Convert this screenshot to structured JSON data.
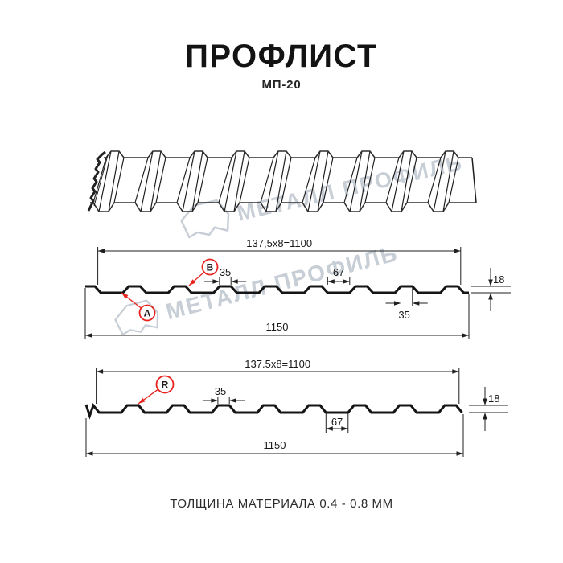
{
  "page": {
    "title": "ПРОФЛИСТ",
    "subtitle": "МП-20",
    "footer": "ТОЛЩИНА МАТЕРИАЛА 0.4 - 0.8 ММ"
  },
  "watermark": {
    "text": "МЕТАЛЛ ПРОФИЛЬ"
  },
  "colors": {
    "accent_red": "#e8231e",
    "line_dark": "#1f1f1f",
    "sheet_line": "#2e2e2e",
    "watermark": "#c7ced6"
  },
  "profile_top": {
    "pitch_dim": "137,5x8=1100",
    "rib_top_width": "35",
    "flat_width": "67",
    "height": "18",
    "rib_bottom_width": "35",
    "total_width": "1150",
    "label_a": "А",
    "label_b": "В"
  },
  "profile_bottom": {
    "pitch_dim": "137.5x8=1100",
    "rib_top_width": "35",
    "flat_width": "67",
    "height": "18",
    "total_width": "1150",
    "label_r": "R"
  }
}
